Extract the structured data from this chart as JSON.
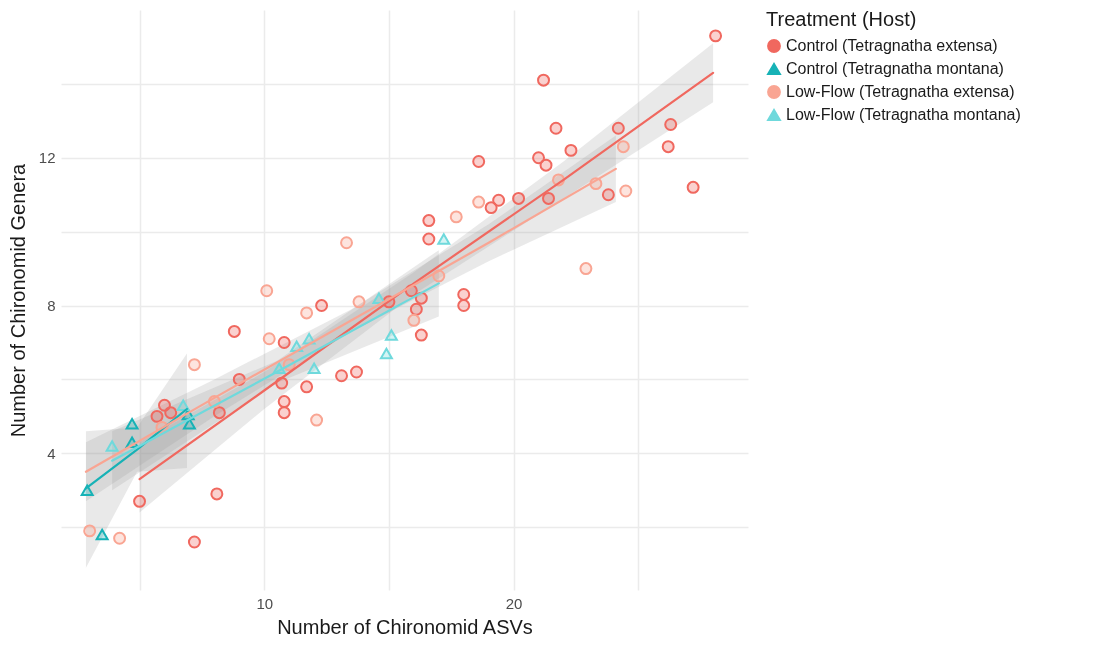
{
  "chart_data": {
    "type": "scatter",
    "xlabel": "Number of Chironomid ASVs",
    "ylabel": "Number of Chironomid Genera",
    "legend_title": "Treatment (Host)",
    "legend": "right",
    "grid": true,
    "xlim": [
      1.85,
      29.4
    ],
    "ylim": [
      0.3,
      16.0
    ],
    "xticks": [
      {
        "value": 5,
        "label": null
      },
      10,
      {
        "value": 15,
        "label": null
      },
      20,
      {
        "value": 25,
        "label": null
      }
    ],
    "yticks": [
      {
        "value": 2,
        "label": null
      },
      4,
      {
        "value": 6,
        "label": null
      },
      8,
      {
        "value": 10,
        "label": null
      },
      12,
      {
        "value": 14,
        "label": null
      }
    ],
    "series": [
      {
        "name": "Control (Tetragnatha extensa)",
        "color": "#f0685f",
        "marker": "circle",
        "x": [
          28.1,
          21.2,
          21.7,
          21.0,
          21.3,
          22.3,
          24.2,
          26.3,
          26.2,
          27.2,
          18.6,
          19.1,
          19.4,
          20.2,
          21.4,
          23.8,
          16.6,
          16.6,
          18.0,
          18.0,
          16.3,
          15.9,
          16.1,
          16.3,
          15.0,
          12.3,
          10.8,
          8.8,
          9.0,
          10.7,
          11.7,
          13.1,
          13.7,
          10.8,
          10.8,
          8.2,
          5.7,
          6.0,
          6.25,
          5.0,
          8.1,
          7.2
        ],
        "values": [
          15.3,
          14.1,
          12.8,
          12.0,
          11.8,
          12.2,
          12.8,
          12.9,
          12.3,
          11.2,
          11.9,
          10.65,
          10.85,
          10.9,
          10.9,
          11.0,
          10.3,
          9.8,
          8.3,
          8.0,
          8.2,
          8.4,
          7.9,
          7.2,
          8.1,
          8.0,
          7.0,
          7.3,
          6.0,
          5.9,
          5.8,
          6.1,
          6.2,
          5.4,
          5.1,
          5.1,
          5.0,
          5.3,
          5.1,
          2.7,
          2.9,
          1.6
        ]
      },
      {
        "name": "Control (Tetragnatha montana)",
        "color": "#17b2b6",
        "marker": "triangle",
        "x": [
          4.7,
          4.7,
          6.95,
          7.0,
          2.9,
          3.5
        ],
        "values": [
          4.8,
          4.3,
          5.05,
          4.8,
          3.0,
          1.8
        ]
      },
      {
        "name": "Low-Flow (Tetragnatha extensa)",
        "color": "#f9a593",
        "marker": "circle",
        "x": [
          11.7,
          10.2,
          7.2,
          11.0,
          12.1,
          8.0,
          5.9,
          3.0,
          4.2,
          17.7,
          18.6,
          13.3,
          10.1,
          13.8,
          16.0,
          17.0,
          24.4,
          24.5,
          22.9,
          23.3,
          21.8
        ],
        "values": [
          7.8,
          7.1,
          6.4,
          6.4,
          4.9,
          5.4,
          4.7,
          1.9,
          1.7,
          10.4,
          10.8,
          9.7,
          8.4,
          8.1,
          7.6,
          8.8,
          12.3,
          11.1,
          9.0,
          11.3,
          11.4
        ]
      },
      {
        "name": "Low-Flow (Tetragnatha montana)",
        "color": "#6fd9dc",
        "marker": "triangle",
        "x": [
          17.2,
          14.6,
          15.1,
          14.9,
          11.8,
          11.3,
          12.0,
          10.6,
          3.9,
          6.75
        ],
        "values": [
          9.8,
          8.2,
          7.2,
          6.7,
          7.1,
          6.9,
          6.3,
          6.3,
          4.2,
          5.3
        ]
      },
      {
        "type": "line",
        "color": "#f0685f",
        "x": [
          5.0,
          10.0,
          16.0,
          22.0,
          28.0
        ],
        "values": [
          3.3,
          5.7,
          8.6,
          11.4,
          14.3
        ],
        "lower": [
          2.4,
          5.2,
          8.3,
          10.9,
          13.5
        ],
        "upper": [
          4.3,
          6.2,
          8.9,
          11.9,
          15.1
        ]
      },
      {
        "type": "line",
        "color": "#17b2b6",
        "x": [
          2.85,
          4.9,
          6.9
        ],
        "values": [
          3.05,
          4.1,
          5.2
        ],
        "lower": [
          0.9,
          3.5,
          3.6
        ],
        "upper": [
          4.6,
          4.7,
          6.7
        ]
      },
      {
        "type": "line",
        "color": "#f9a593",
        "x": [
          2.85,
          8.0,
          13.5,
          19.0,
          24.1
        ],
        "values": [
          3.5,
          5.5,
          7.6,
          9.7,
          11.7
        ],
        "lower": [
          2.7,
          5.0,
          7.3,
          9.2,
          10.8
        ],
        "upper": [
          4.3,
          6.0,
          7.9,
          10.2,
          12.6
        ]
      },
      {
        "type": "line",
        "color": "#6fd9dc",
        "x": [
          3.9,
          10.5,
          17.0
        ],
        "values": [
          3.8,
          6.2,
          8.6
        ],
        "lower": [
          3.0,
          5.9,
          7.7
        ],
        "upper": [
          4.6,
          6.5,
          9.5
        ]
      }
    ]
  }
}
